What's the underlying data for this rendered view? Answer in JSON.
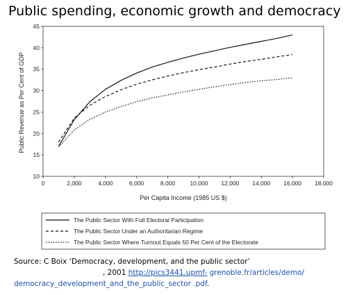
{
  "page": {
    "title": "Public spending, economic growth and democracy"
  },
  "chart_data": {
    "type": "line",
    "xlabel": "Per Capita Income (1985 US $)",
    "ylabel": "Public Revenue as Per Cent of GDP",
    "xlim": [
      0,
      18000
    ],
    "ylim": [
      10,
      45
    ],
    "x_ticks": [
      "0",
      "2,000",
      "4,000",
      "6,000",
      "8,000",
      "10,000",
      "12,000",
      "14,000",
      "16,000",
      "18,000"
    ],
    "y_ticks": [
      "10",
      "15",
      "20",
      "25",
      "30",
      "35",
      "40",
      "45"
    ],
    "grid": false,
    "legend_position": "bottom",
    "x": [
      1000,
      2000,
      3000,
      4000,
      5000,
      6000,
      7000,
      8000,
      9000,
      10000,
      11000,
      12000,
      13000,
      14000,
      15000,
      16000
    ],
    "series": [
      {
        "name": "The Public Sector With Full Electoral Participation",
        "style": "solid",
        "values": [
          17.0,
          23.2,
          27.4,
          30.3,
          32.4,
          34.1,
          35.5,
          36.6,
          37.6,
          38.5,
          39.3,
          40.1,
          40.8,
          41.5,
          42.2,
          43.0
        ]
      },
      {
        "name": "The Public Sector Under an Authoritarian Regime",
        "style": "dashed",
        "values": [
          18.0,
          23.6,
          26.6,
          28.6,
          30.2,
          31.5,
          32.5,
          33.4,
          34.2,
          34.9,
          35.5,
          36.2,
          36.8,
          37.3,
          37.9,
          38.4
        ]
      },
      {
        "name": "The Public Sector Where Turnout Equals 50 Per Cent of the Electorate",
        "style": "dotted",
        "values": [
          16.9,
          20.8,
          23.3,
          25.0,
          26.3,
          27.4,
          28.3,
          29.0,
          29.7,
          30.3,
          30.9,
          31.4,
          31.9,
          32.3,
          32.6,
          33.0
        ]
      }
    ]
  },
  "source": {
    "prefix": "Source: C Boix ‘Democracy, development, and the public sector’",
    "year": ", 2001",
    "link_part1": "http://pics3441.upmf-",
    "link_part2": " grenoble.fr/articles/demo/",
    "link_part3": "democracy_development_and_the_public_sector .pdf",
    "suffix": "."
  }
}
